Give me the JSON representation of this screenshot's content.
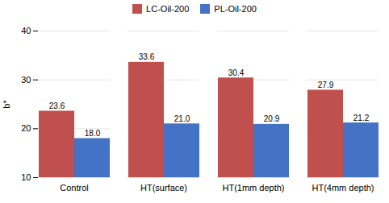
{
  "chart_data": {
    "type": "bar",
    "categories": [
      "Control",
      "HT(surface)",
      "HT(1mm depth)",
      "HT(4mm depth)"
    ],
    "series": [
      {
        "name": "LC-Oil-200",
        "color": "#C0504D",
        "values": [
          23.6,
          33.6,
          30.4,
          27.9
        ],
        "value_labels": [
          "23.6",
          "33.6",
          "30.4",
          "27.9"
        ]
      },
      {
        "name": "PL-Oil-200",
        "color": "#4472C4",
        "values": [
          18.0,
          21.0,
          20.9,
          21.2
        ],
        "value_labels": [
          "18.0",
          "21.0",
          "20.9",
          "21.2"
        ]
      }
    ],
    "ylabel": "b*",
    "ylim": [
      10,
      40
    ],
    "yticks": [
      10,
      20,
      30,
      40
    ],
    "grid": true,
    "legend": "top",
    "data_labels": true
  }
}
